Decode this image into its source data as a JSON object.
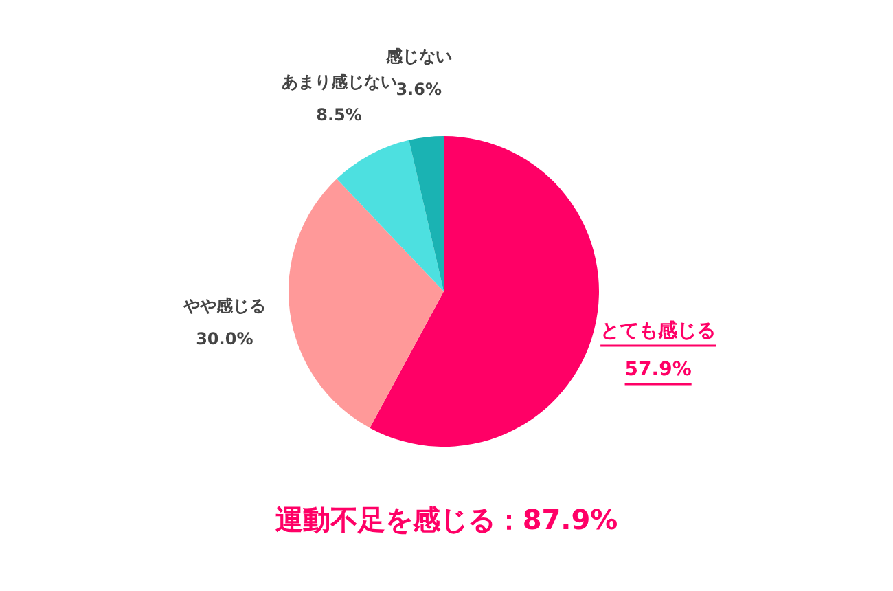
{
  "chart_data": {
    "type": "pie",
    "categories": [
      "とても感じる",
      "やや感じる",
      "あまり感じない",
      "感じない"
    ],
    "values": [
      57.9,
      30.0,
      8.5,
      3.6
    ],
    "colors": [
      "#ff0066",
      "#ff9999",
      "#4de0e0",
      "#1ab3b3"
    ],
    "value_labels": [
      "57.9%",
      "30.0%",
      "8.5%",
      "3.6%"
    ],
    "legend": false,
    "annotations": [
      "運動不足を感じる：87.9%"
    ]
  }
}
